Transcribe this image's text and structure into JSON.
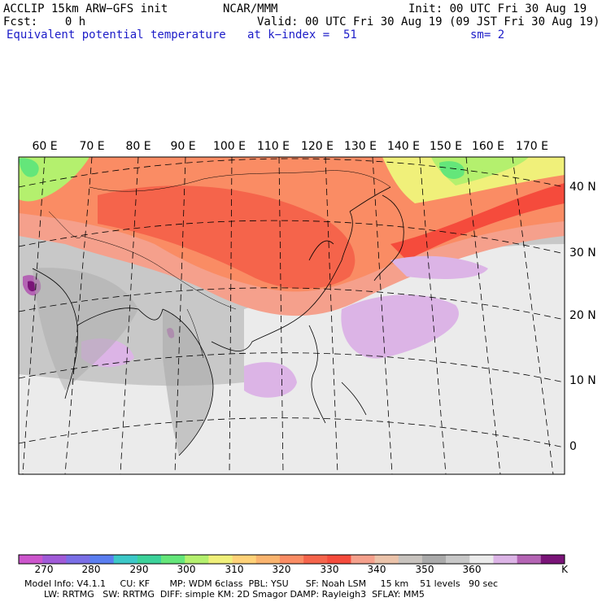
{
  "header": {
    "model": "ACCLIP 15km ARW−GFS init",
    "org": "NCAR/MMM",
    "init": "Init: 00 UTC Fri 30 Aug 19",
    "fcst": "Fcst:    0 h",
    "valid": "Valid: 00 UTC Fri 30 Aug 19 (09 JST Fri 30 Aug 19)",
    "field": "Equivalent potential temperature",
    "level": "at k−index =  51",
    "smooth": "sm= 2"
  },
  "map": {
    "lon_labels": [
      "60 E",
      "70 E",
      "80 E",
      "90 E",
      "100 E",
      "110 E",
      "120 E",
      "130 E",
      "140 E",
      "150 E",
      "160 E",
      "170 E"
    ],
    "lat_labels": [
      "40 N",
      "30 N",
      "20 N",
      "10 N",
      "0"
    ]
  },
  "colorbar": {
    "colors": [
      "#cc55cc",
      "#a05ad8",
      "#7a6ee6",
      "#5a7ef0",
      "#3cc8c8",
      "#3cd29a",
      "#64e67a",
      "#b4f06e",
      "#f0f07a",
      "#ffd278",
      "#fab46e",
      "#fa8c64",
      "#f5644b",
      "#f54b3c",
      "#f5a08c",
      "#ebc3aa",
      "#c8c3be",
      "#aaaaaa",
      "#c8c8c8",
      "#ebebeb",
      "#dcb4e6",
      "#b464b4",
      "#7a1478"
    ],
    "labels": [
      "270",
      "280",
      "290",
      "300",
      "310",
      "320",
      "330",
      "340",
      "350",
      "360"
    ],
    "unit": "K"
  },
  "footer": {
    "line1": "Model Info: V4.1.1     CU: KF       MP: WDM 6class  PBL: YSU      SF: Noah LSM     15 km    51 levels   90 sec",
    "line2": "LW: RRTMG   SW: RRTMG  DIFF: simple KM: 2D Smagor DAMP: Rayleigh3  SFLAY: MM5"
  }
}
